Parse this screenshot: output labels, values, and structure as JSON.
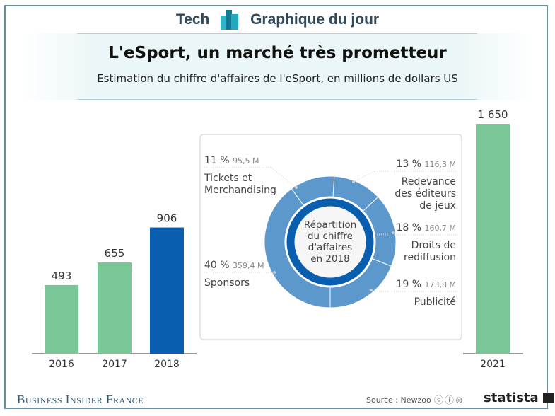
{
  "header": {
    "brand_left": "Tech",
    "brand_right": "Graphique du jour",
    "logo_icon": "bar-chart-logo-icon"
  },
  "footer": {
    "publisher": "Business Insider France",
    "source": "Source : Newzoo",
    "license_icons": "cc-by-nd-icons",
    "statista": "statista"
  },
  "colors": {
    "bar_green": "#79c796",
    "bar_highlight": "#0a5eb0",
    "donut_segment": "#5d98cc",
    "donut_ring": "#0a5eb0",
    "frame": "#6a8e9c"
  },
  "chart_data": [
    {
      "type": "bar",
      "title": "L'eSport, un marché très prometteur",
      "subtitle": "Estimation du chiffre d'affaires de l'eSport, en millions de dollars US",
      "categories": [
        "2016",
        "2017",
        "2018",
        "2021"
      ],
      "values": [
        493,
        655,
        906,
        1650
      ],
      "value_labels": [
        "493",
        "655",
        "906",
        "1 650"
      ],
      "highlight": "2018",
      "ylim": [
        0,
        1650
      ],
      "grid": false
    },
    {
      "type": "pie",
      "donut": true,
      "center_label": "Répartition du chiffre d'affaires en 2018",
      "center_lines": [
        "Répartition",
        "du chiffre",
        "d'affaires",
        "en 2018"
      ],
      "slices": [
        {
          "label_lines": [
            "Redevance",
            "des éditeurs",
            "de jeux"
          ],
          "percent": 13,
          "percent_label": "13 %",
          "value": 116.3,
          "value_label": "116,3 M"
        },
        {
          "label_lines": [
            "Droits de",
            "rediffusion"
          ],
          "percent": 18,
          "percent_label": "18 %",
          "value": 160.7,
          "value_label": "160,7 M"
        },
        {
          "label_lines": [
            "Publicité"
          ],
          "percent": 19,
          "percent_label": "19 %",
          "value": 173.8,
          "value_label": "173,8 M"
        },
        {
          "label_lines": [
            "Sponsors"
          ],
          "percent": 40,
          "percent_label": "40 %",
          "value": 359.4,
          "value_label": "359,4 M"
        },
        {
          "label_lines": [
            "Tickets et",
            "Merchandising"
          ],
          "percent": 11,
          "percent_label": "11 %",
          "value": 95.5,
          "value_label": "95,5 M"
        }
      ]
    }
  ]
}
